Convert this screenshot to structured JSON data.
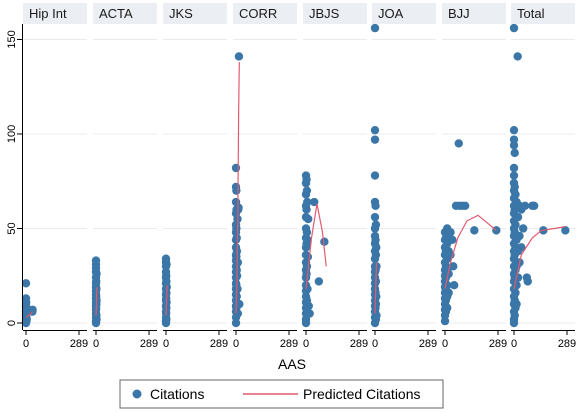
{
  "chart_data": {
    "type": "scatter",
    "xlabel": "AAS",
    "ylabel": "",
    "xlim": [
      0,
      289
    ],
    "ylim": [
      0,
      155
    ],
    "x_ticks": [
      "0",
      "289"
    ],
    "y_ticks": [
      0,
      50,
      100,
      150
    ],
    "grid": true,
    "legend_position": "bottom",
    "legend": {
      "citations": "Citations",
      "predicted": "Predicted Citations"
    },
    "colors": {
      "point": "#3a77a8",
      "line": "#e05a6f",
      "strip": "#ebeef2"
    },
    "panels": [
      {
        "label": "Hip Int",
        "points": [
          [
            0,
            21
          ],
          [
            0,
            13
          ],
          [
            0,
            9
          ],
          [
            0,
            6
          ],
          [
            0,
            4
          ],
          [
            0,
            2
          ],
          [
            0,
            1
          ],
          [
            0,
            0
          ],
          [
            1,
            11
          ],
          [
            1,
            5
          ],
          [
            2,
            3
          ],
          [
            2,
            1
          ],
          [
            3,
            8
          ],
          [
            4,
            2
          ],
          [
            5,
            6
          ],
          [
            35,
            6
          ],
          [
            36,
            7
          ]
        ],
        "line": [
          [
            0,
            3
          ],
          [
            15,
            4
          ],
          [
            36,
            6
          ]
        ]
      },
      {
        "label": "ACTA",
        "points": [
          [
            0,
            33
          ],
          [
            0,
            31
          ],
          [
            0,
            29
          ],
          [
            0,
            27
          ],
          [
            0,
            24
          ],
          [
            0,
            21
          ],
          [
            0,
            19
          ],
          [
            0,
            17
          ],
          [
            0,
            15
          ],
          [
            0,
            13
          ],
          [
            0,
            11
          ],
          [
            0,
            9
          ],
          [
            0,
            7
          ],
          [
            0,
            5
          ],
          [
            0,
            3
          ],
          [
            0,
            1
          ],
          [
            0,
            0
          ],
          [
            1,
            22
          ],
          [
            1,
            14
          ],
          [
            1,
            8
          ],
          [
            2,
            18
          ],
          [
            2,
            10
          ],
          [
            2,
            4
          ],
          [
            3,
            26
          ],
          [
            3,
            12
          ],
          [
            3,
            2
          ]
        ],
        "line": [
          [
            0,
            4
          ],
          [
            2,
            9
          ],
          [
            5,
            19
          ]
        ]
      },
      {
        "label": "JKS",
        "points": [
          [
            0,
            34
          ],
          [
            0,
            32
          ],
          [
            0,
            30
          ],
          [
            0,
            27
          ],
          [
            0,
            24
          ],
          [
            0,
            21
          ],
          [
            0,
            18
          ],
          [
            0,
            15
          ],
          [
            0,
            12
          ],
          [
            0,
            9
          ],
          [
            0,
            6
          ],
          [
            0,
            3
          ],
          [
            0,
            1
          ],
          [
            0,
            0
          ],
          [
            1,
            25
          ],
          [
            1,
            13
          ],
          [
            1,
            5
          ],
          [
            2,
            22
          ],
          [
            2,
            16
          ],
          [
            2,
            8
          ],
          [
            2,
            2
          ],
          [
            3,
            31
          ],
          [
            3,
            11
          ],
          [
            4,
            19
          ]
        ],
        "line": [
          [
            0,
            4
          ],
          [
            3,
            12
          ],
          [
            6,
            20
          ]
        ]
      },
      {
        "label": "CORR",
        "points": [
          [
            0,
            82
          ],
          [
            0,
            72
          ],
          [
            0,
            64
          ],
          [
            0,
            58
          ],
          [
            0,
            52
          ],
          [
            0,
            48
          ],
          [
            0,
            44
          ],
          [
            0,
            40
          ],
          [
            0,
            36
          ],
          [
            0,
            33
          ],
          [
            0,
            30
          ],
          [
            0,
            27
          ],
          [
            0,
            24
          ],
          [
            0,
            21
          ],
          [
            0,
            18
          ],
          [
            0,
            15
          ],
          [
            0,
            12
          ],
          [
            0,
            9
          ],
          [
            0,
            6
          ],
          [
            0,
            3
          ],
          [
            0,
            0
          ],
          [
            2,
            70
          ],
          [
            2,
            50
          ],
          [
            2,
            35
          ],
          [
            2,
            20
          ],
          [
            2,
            8
          ],
          [
            3,
            60
          ],
          [
            4,
            45
          ],
          [
            4,
            28
          ],
          [
            4,
            14
          ],
          [
            5,
            38
          ],
          [
            6,
            25
          ],
          [
            6,
            10
          ],
          [
            8,
            55
          ],
          [
            8,
            18
          ],
          [
            10,
            32
          ],
          [
            10,
            5
          ],
          [
            12,
            60
          ],
          [
            14,
            61
          ],
          [
            16,
            141
          ],
          [
            18,
            10
          ]
        ],
        "line": [
          [
            0,
            5
          ],
          [
            5,
            20
          ],
          [
            10,
            55
          ],
          [
            14,
            110
          ],
          [
            18,
            138
          ]
        ]
      },
      {
        "label": "JBJS",
        "points": [
          [
            0,
            78
          ],
          [
            0,
            74
          ],
          [
            0,
            68
          ],
          [
            0,
            62
          ],
          [
            0,
            56
          ],
          [
            0,
            50
          ],
          [
            0,
            45
          ],
          [
            0,
            40
          ],
          [
            0,
            36
          ],
          [
            0,
            32
          ],
          [
            0,
            28
          ],
          [
            0,
            24
          ],
          [
            0,
            20
          ],
          [
            0,
            17
          ],
          [
            0,
            14
          ],
          [
            0,
            11
          ],
          [
            0,
            8
          ],
          [
            0,
            5
          ],
          [
            0,
            2
          ],
          [
            0,
            0
          ],
          [
            3,
            76
          ],
          [
            3,
            60
          ],
          [
            3,
            42
          ],
          [
            3,
            26
          ],
          [
            5,
            70
          ],
          [
            5,
            48
          ],
          [
            5,
            30
          ],
          [
            5,
            12
          ],
          [
            7,
            64
          ],
          [
            8,
            44
          ],
          [
            8,
            18
          ],
          [
            10,
            35
          ],
          [
            12,
            55
          ],
          [
            15,
            9
          ],
          [
            20,
            5
          ],
          [
            45,
            64
          ],
          [
            70,
            22
          ],
          [
            100,
            43
          ]
        ],
        "line": [
          [
            0,
            18
          ],
          [
            30,
            45
          ],
          [
            60,
            63
          ],
          [
            90,
            48
          ],
          [
            110,
            30
          ]
        ]
      },
      {
        "label": "JOA",
        "points": [
          [
            0,
            156
          ],
          [
            0,
            102
          ],
          [
            0,
            97
          ],
          [
            0,
            78
          ],
          [
            0,
            64
          ],
          [
            0,
            56
          ],
          [
            0,
            50
          ],
          [
            0,
            46
          ],
          [
            0,
            42
          ],
          [
            0,
            38
          ],
          [
            0,
            34
          ],
          [
            0,
            30
          ],
          [
            0,
            27
          ],
          [
            0,
            24
          ],
          [
            0,
            21
          ],
          [
            0,
            18
          ],
          [
            0,
            15
          ],
          [
            0,
            12
          ],
          [
            0,
            9
          ],
          [
            0,
            6
          ],
          [
            0,
            3
          ],
          [
            0,
            0
          ],
          [
            3,
            62
          ],
          [
            3,
            44
          ],
          [
            3,
            28
          ],
          [
            3,
            16
          ],
          [
            3,
            8
          ],
          [
            5,
            52
          ],
          [
            5,
            36
          ],
          [
            5,
            22
          ],
          [
            5,
            10
          ],
          [
            5,
            2
          ],
          [
            7,
            40
          ],
          [
            7,
            14
          ],
          [
            8,
            30
          ],
          [
            8,
            4
          ]
        ],
        "line": [
          [
            0,
            5
          ],
          [
            4,
            18
          ],
          [
            8,
            32
          ]
        ]
      },
      {
        "label": "BJJ",
        "points": [
          [
            0,
            48
          ],
          [
            0,
            44
          ],
          [
            0,
            40
          ],
          [
            0,
            36
          ],
          [
            0,
            32
          ],
          [
            0,
            28
          ],
          [
            0,
            25
          ],
          [
            0,
            22
          ],
          [
            0,
            19
          ],
          [
            0,
            16
          ],
          [
            0,
            13
          ],
          [
            0,
            10
          ],
          [
            0,
            7
          ],
          [
            0,
            4
          ],
          [
            0,
            1
          ],
          [
            5,
            45
          ],
          [
            5,
            38
          ],
          [
            5,
            30
          ],
          [
            5,
            24
          ],
          [
            5,
            18
          ],
          [
            5,
            12
          ],
          [
            5,
            6
          ],
          [
            12,
            50
          ],
          [
            12,
            42
          ],
          [
            12,
            34
          ],
          [
            12,
            28
          ],
          [
            12,
            20
          ],
          [
            12,
            14
          ],
          [
            12,
            8
          ],
          [
            20,
            46
          ],
          [
            20,
            38
          ],
          [
            20,
            26
          ],
          [
            20,
            16
          ],
          [
            30,
            48
          ],
          [
            30,
            36
          ],
          [
            40,
            44
          ],
          [
            45,
            30
          ],
          [
            50,
            20
          ],
          [
            60,
            62
          ],
          [
            75,
            95
          ],
          [
            80,
            62
          ],
          [
            95,
            62
          ],
          [
            110,
            62
          ],
          [
            160,
            49
          ],
          [
            280,
            49
          ]
        ],
        "line": [
          [
            0,
            18
          ],
          [
            30,
            32
          ],
          [
            70,
            45
          ],
          [
            120,
            54
          ],
          [
            180,
            57
          ],
          [
            230,
            53
          ],
          [
            280,
            49
          ]
        ]
      },
      {
        "label": "Total",
        "points": [
          [
            0,
            156
          ],
          [
            0,
            102
          ],
          [
            0,
            97
          ],
          [
            0,
            94
          ],
          [
            0,
            82
          ],
          [
            0,
            78
          ],
          [
            0,
            74
          ],
          [
            0,
            70
          ],
          [
            0,
            66
          ],
          [
            0,
            62
          ],
          [
            0,
            58
          ],
          [
            0,
            54
          ],
          [
            0,
            50
          ],
          [
            0,
            46
          ],
          [
            0,
            42
          ],
          [
            0,
            38
          ],
          [
            0,
            34
          ],
          [
            0,
            30
          ],
          [
            0,
            26
          ],
          [
            0,
            22
          ],
          [
            0,
            18
          ],
          [
            0,
            14
          ],
          [
            0,
            10
          ],
          [
            0,
            6
          ],
          [
            0,
            2
          ],
          [
            0,
            0
          ],
          [
            4,
            90
          ],
          [
            4,
            72
          ],
          [
            4,
            60
          ],
          [
            4,
            48
          ],
          [
            4,
            36
          ],
          [
            4,
            24
          ],
          [
            4,
            12
          ],
          [
            4,
            4
          ],
          [
            8,
            68
          ],
          [
            8,
            52
          ],
          [
            8,
            40
          ],
          [
            8,
            28
          ],
          [
            8,
            16
          ],
          [
            8,
            8
          ],
          [
            14,
            64
          ],
          [
            14,
            44
          ],
          [
            14,
            30
          ],
          [
            14,
            20
          ],
          [
            14,
            10
          ],
          [
            20,
            141
          ],
          [
            22,
            56
          ],
          [
            22,
            38
          ],
          [
            22,
            24
          ],
          [
            30,
            62
          ],
          [
            30,
            46
          ],
          [
            30,
            32
          ],
          [
            40,
            60
          ],
          [
            40,
            40
          ],
          [
            50,
            50
          ],
          [
            60,
            62
          ],
          [
            70,
            24
          ],
          [
            75,
            22
          ],
          [
            100,
            62
          ],
          [
            110,
            62
          ],
          [
            160,
            49
          ],
          [
            280,
            49
          ]
        ],
        "line": [
          [
            0,
            18
          ],
          [
            40,
            36
          ],
          [
            100,
            45
          ],
          [
            150,
            49
          ],
          [
            220,
            50
          ],
          [
            280,
            51
          ]
        ]
      }
    ]
  }
}
